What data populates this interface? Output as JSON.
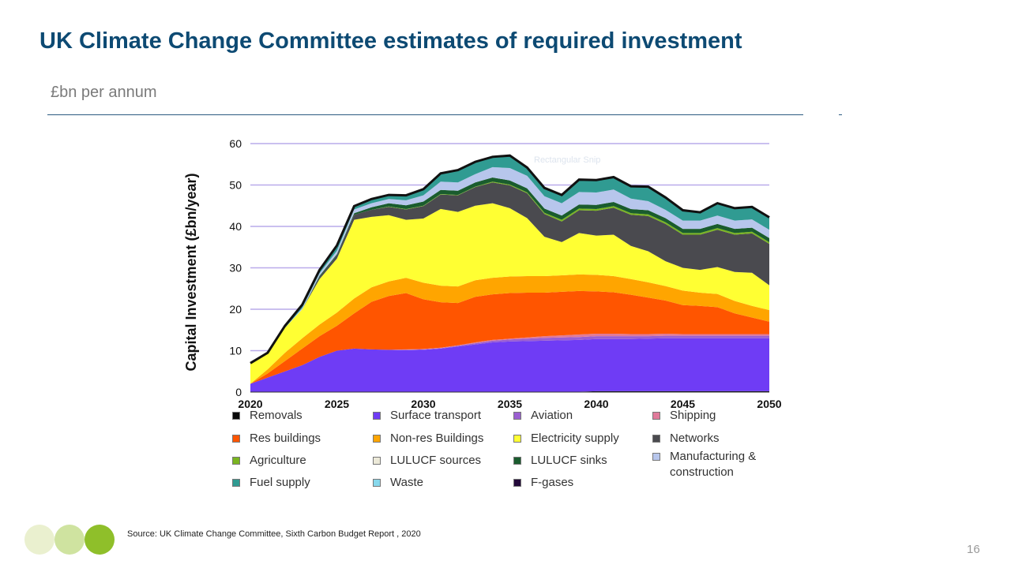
{
  "slide": {
    "title": "UK Climate Change Committee estimates of required investment",
    "subtitle": "£bn per annum",
    "source": "Source: UK Climate Change Committee, Sixth Carbon Budget Report , 2020",
    "page_number": "16",
    "faded_watermark": "Rectangular Snip"
  },
  "chart_data": {
    "type": "area",
    "ylabel": "Capital Investment (£bn/year)",
    "xlabel": "",
    "ylim": [
      0,
      60
    ],
    "xlim": [
      2020,
      2050
    ],
    "yticks": [
      "0",
      "10",
      "20",
      "30",
      "40",
      "50",
      "60"
    ],
    "xticks": [
      "2020",
      "2025",
      "2030",
      "2035",
      "2040",
      "2045",
      "2050"
    ],
    "grid": true,
    "legend_position": "bottom",
    "x": [
      2020,
      2021,
      2022,
      2023,
      2024,
      2025,
      2026,
      2027,
      2028,
      2029,
      2030,
      2031,
      2032,
      2033,
      2034,
      2035,
      2036,
      2037,
      2038,
      2039,
      2040,
      2041,
      2042,
      2043,
      2044,
      2045,
      2046,
      2047,
      2048,
      2049,
      2050
    ],
    "series": [
      {
        "name": "Removals",
        "color": "#0a0a0a",
        "values": [
          0,
          0,
          0,
          0,
          0,
          0,
          0,
          0,
          0,
          0,
          0,
          0,
          0,
          0,
          0,
          0,
          0,
          0,
          0,
          0.1,
          0.2,
          0.2,
          0.2,
          0.2,
          0.2,
          0.2,
          0.2,
          0.2,
          0.2,
          0.2,
          0.2
        ]
      },
      {
        "name": "Surface transport",
        "color": "#6f3cf5",
        "values": [
          2,
          3.5,
          5,
          6.5,
          8.5,
          10,
          10.5,
          10.3,
          10.2,
          10.1,
          10.2,
          10.5,
          11,
          11.5,
          12,
          12.2,
          12.3,
          12.4,
          12.5,
          12.5,
          12.6,
          12.6,
          12.6,
          12.7,
          12.8,
          12.8,
          12.8,
          12.8,
          12.8,
          12.8,
          12.8
        ]
      },
      {
        "name": "Aviation",
        "color": "#9b5fd1",
        "values": [
          0,
          0,
          0,
          0,
          0,
          0,
          0,
          0,
          0,
          0.1,
          0.1,
          0.1,
          0.2,
          0.3,
          0.4,
          0.5,
          0.6,
          0.7,
          0.7,
          0.7,
          0.7,
          0.7,
          0.7,
          0.6,
          0.6,
          0.6,
          0.6,
          0.6,
          0.6,
          0.6,
          0.6
        ]
      },
      {
        "name": "Shipping",
        "color": "#e07a9a",
        "values": [
          0,
          0,
          0,
          0,
          0,
          0,
          0,
          0,
          0,
          0.1,
          0.1,
          0.1,
          0.1,
          0.2,
          0.2,
          0.2,
          0.3,
          0.4,
          0.5,
          0.6,
          0.6,
          0.6,
          0.5,
          0.5,
          0.5,
          0.4,
          0.4,
          0.4,
          0.4,
          0.4,
          0.4
        ]
      },
      {
        "name": "Res buildings",
        "color": "#ff5500",
        "values": [
          0,
          1,
          2.5,
          4,
          5,
          6,
          8.5,
          11.5,
          13,
          13.6,
          12,
          11,
          10.2,
          11,
          11,
          11,
          10.8,
          10.5,
          10.5,
          10.5,
          10.2,
          10,
          9.5,
          8.8,
          8,
          7,
          6.8,
          6.5,
          5,
          4,
          3
        ]
      },
      {
        "name": "Non-res Buildings",
        "color": "#ffa500",
        "values": [
          0,
          1,
          2,
          2.5,
          2.8,
          3.2,
          3.6,
          3.5,
          3.5,
          3.7,
          4,
          4,
          4,
          4,
          4,
          4,
          4,
          4,
          4,
          4,
          4,
          3.9,
          3.8,
          3.7,
          3.5,
          3.5,
          3.2,
          3.2,
          3,
          2.8,
          2.8
        ]
      },
      {
        "name": "Electricity supply",
        "color": "#ffff33",
        "values": [
          5,
          4,
          6,
          7,
          11,
          13,
          19,
          17,
          16,
          14,
          15.5,
          18.5,
          18,
          18,
          18,
          16.5,
          14,
          9.5,
          8,
          10,
          9.5,
          10,
          8,
          7.5,
          6,
          5.5,
          5.5,
          6.5,
          7,
          8,
          6
        ]
      },
      {
        "name": "Networks",
        "color": "#4a4a4f",
        "values": [
          0,
          0,
          0,
          0,
          0.5,
          0.8,
          1.2,
          1.7,
          2,
          2.5,
          3,
          3.5,
          4,
          4.5,
          5,
          5.5,
          6,
          5.5,
          5,
          5.5,
          6,
          6.5,
          7.5,
          8.5,
          9,
          8,
          8.5,
          9,
          9,
          9.5,
          10
        ]
      },
      {
        "name": "Agriculture",
        "color": "#7ab520",
        "values": [
          0,
          0,
          0,
          0,
          0,
          0,
          0,
          0,
          0.1,
          0.1,
          0.1,
          0.1,
          0.1,
          0.1,
          0.2,
          0.2,
          0.2,
          0.3,
          0.4,
          0.4,
          0.4,
          0.4,
          0.4,
          0.4,
          0.4,
          0.4,
          0.4,
          0.4,
          0.4,
          0.4,
          0.4
        ]
      },
      {
        "name": "LULUCF sources",
        "color": "#ece9d8",
        "values": [
          0,
          0,
          0,
          0,
          0,
          0,
          0,
          0,
          0,
          0,
          0,
          0,
          0,
          0,
          0,
          0,
          0,
          0,
          0,
          0,
          0,
          0,
          0,
          0,
          0,
          0,
          0,
          0,
          0,
          0,
          0
        ]
      },
      {
        "name": "LULUCF sinks",
        "color": "#1a5c2e",
        "values": [
          0,
          0,
          0,
          0,
          0.3,
          0.3,
          0.4,
          0.6,
          0.8,
          0.9,
          1,
          1,
          1,
          1,
          1,
          1,
          1,
          1,
          1,
          1,
          1,
          1,
          1,
          1,
          1,
          1,
          1,
          1,
          1,
          1,
          1
        ]
      },
      {
        "name": "Manufacturing & construction",
        "color": "#b7c6ec",
        "values": [
          0,
          0,
          0,
          0.3,
          0.6,
          0.8,
          0.9,
          1,
          1,
          1.2,
          1.5,
          2,
          2,
          2,
          2.5,
          3,
          3,
          3,
          3,
          3,
          3,
          3,
          2.5,
          2.2,
          2,
          2,
          2,
          2,
          2,
          2,
          2
        ]
      },
      {
        "name": "Fuel supply",
        "color": "#309b92",
        "values": [
          0,
          0,
          0.5,
          0.8,
          0.8,
          1.3,
          0.8,
          1,
          1,
          1.2,
          1.5,
          2,
          3,
          3,
          2.5,
          3,
          2,
          2,
          2,
          3,
          3,
          3,
          3,
          3.5,
          3,
          2.5,
          2,
          3,
          3,
          3,
          3
        ]
      },
      {
        "name": "Waste",
        "color": "#87d8ec",
        "values": [
          0,
          0,
          0,
          0,
          0,
          0,
          0,
          0,
          0,
          0,
          0,
          0,
          0,
          0,
          0,
          0,
          0,
          0,
          0,
          0,
          0,
          0,
          0,
          0,
          0,
          0,
          0,
          0,
          0,
          0,
          0
        ]
      },
      {
        "name": "F-gases",
        "color": "#240a3a",
        "values": [
          0,
          0,
          0,
          0,
          0,
          0,
          0,
          0,
          0,
          0,
          0,
          0,
          0,
          0,
          0,
          0,
          0,
          0,
          0,
          0,
          0,
          0,
          0,
          0,
          0,
          0,
          0,
          0,
          0,
          0,
          0
        ]
      }
    ],
    "legend_order": [
      "Removals",
      "Surface transport",
      "Aviation",
      "Shipping",
      "Res buildings",
      "Non-res Buildings",
      "Electricity supply",
      "Networks",
      "Agriculture",
      "LULUCF sources",
      "LULUCF sinks",
      "Manufacturing & construction",
      "Fuel supply",
      "Waste",
      "F-gases"
    ]
  },
  "decor": {
    "circle_colors": [
      "#eaf0cf",
      "#cfe3a0",
      "#8fbf2a"
    ]
  }
}
